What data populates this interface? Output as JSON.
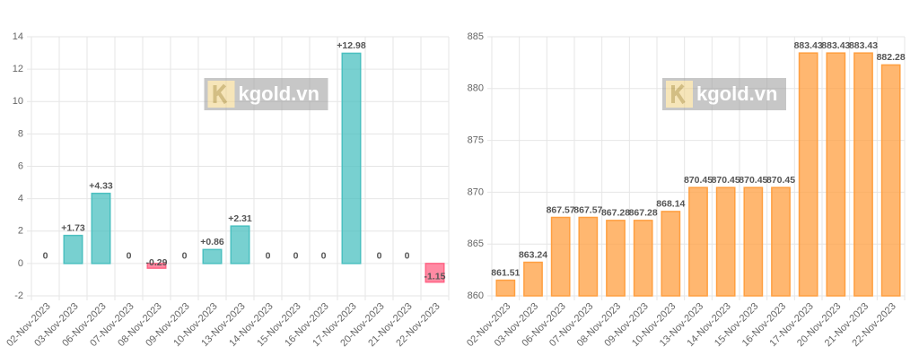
{
  "chart_data": [
    {
      "type": "bar",
      "categories": [
        "02-Nov-2023",
        "03-Nov-2023",
        "06-Nov-2023",
        "07-Nov-2023",
        "08-Nov-2023",
        "09-Nov-2023",
        "10-Nov-2023",
        "13-Nov-2023",
        "14-Nov-2023",
        "15-Nov-2023",
        "16-Nov-2023",
        "17-Nov-2023",
        "20-Nov-2023",
        "21-Nov-2023",
        "22-Nov-2023"
      ],
      "values": [
        0,
        1.73,
        4.33,
        0,
        -0.29,
        0,
        0.86,
        2.31,
        0,
        0,
        0,
        12.98,
        0,
        0,
        -1.15
      ],
      "value_labels": [
        "0",
        "+1.73",
        "+4.33",
        "0",
        "-0.29",
        "0",
        "+0.86",
        "+2.31",
        "0",
        "0",
        "0",
        "+12.98",
        "0",
        "0",
        "-1.15"
      ],
      "color": "#4bc0c0",
      "negative_color": "#ff6384",
      "ylim": [
        -2,
        14
      ],
      "yticks": [
        -2,
        0,
        2,
        4,
        6,
        8,
        10,
        12,
        14
      ],
      "grid": true,
      "watermark": "kgold.vn"
    },
    {
      "type": "bar",
      "categories": [
        "02-Nov-2023",
        "03-Nov-2023",
        "06-Nov-2023",
        "07-Nov-2023",
        "08-Nov-2023",
        "09-Nov-2023",
        "10-Nov-2023",
        "13-Nov-2023",
        "14-Nov-2023",
        "15-Nov-2023",
        "16-Nov-2023",
        "17-Nov-2023",
        "20-Nov-2023",
        "21-Nov-2023",
        "22-Nov-2023"
      ],
      "values": [
        861.51,
        863.24,
        867.57,
        867.57,
        867.28,
        867.28,
        868.14,
        870.45,
        870.45,
        870.45,
        870.45,
        883.43,
        883.43,
        883.43,
        882.28
      ],
      "color": "#ff9f40",
      "ylim": [
        860,
        885
      ],
      "yticks": [
        860,
        865,
        870,
        875,
        880,
        885
      ],
      "grid": true,
      "watermark": "kgold.vn"
    }
  ]
}
